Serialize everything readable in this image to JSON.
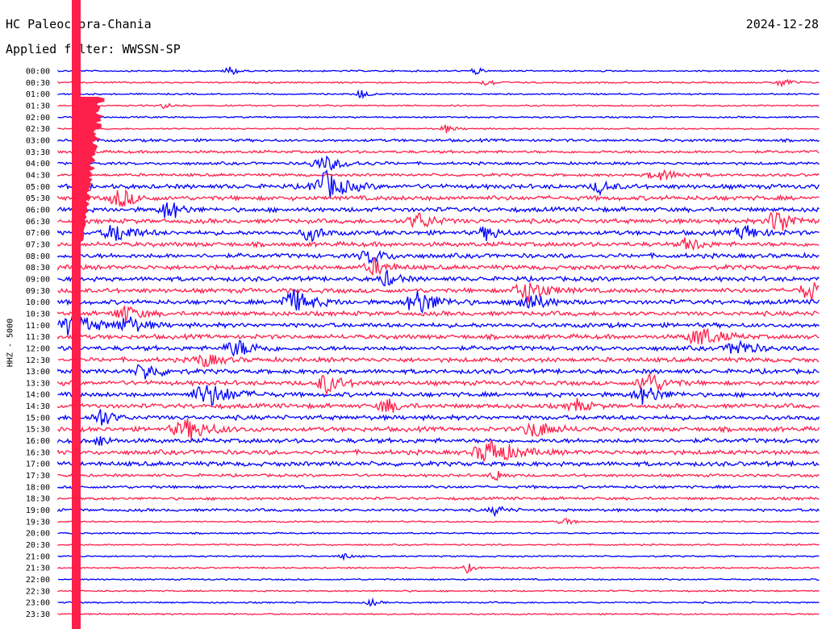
{
  "header": {
    "station": "HC Paleochora-Chania",
    "date": "2024-12-28",
    "filter": "Applied filter: WWSSN-SP"
  },
  "chart_data": {
    "type": "line",
    "ylabel": "HHZ - 5000",
    "row_labels": [
      "00:00",
      "00:30",
      "01:00",
      "01:30",
      "02:00",
      "02:30",
      "03:00",
      "03:30",
      "04:00",
      "04:30",
      "05:00",
      "05:30",
      "06:00",
      "06:30",
      "07:00",
      "07:30",
      "08:00",
      "08:30",
      "09:00",
      "09:30",
      "10:00",
      "10:30",
      "11:00",
      "11:30",
      "12:00",
      "12:30",
      "13:00",
      "13:30",
      "14:00",
      "14:30",
      "15:00",
      "15:30",
      "16:00",
      "16:30",
      "17:00",
      "17:30",
      "18:00",
      "18:30",
      "19:00",
      "19:30",
      "20:00",
      "20:30",
      "21:00",
      "21:30",
      "22:00",
      "22:30",
      "23:00",
      "23:30"
    ],
    "colors": [
      "#0000ff",
      "#ff1f4b"
    ],
    "minutes_per_row": 30
  }
}
